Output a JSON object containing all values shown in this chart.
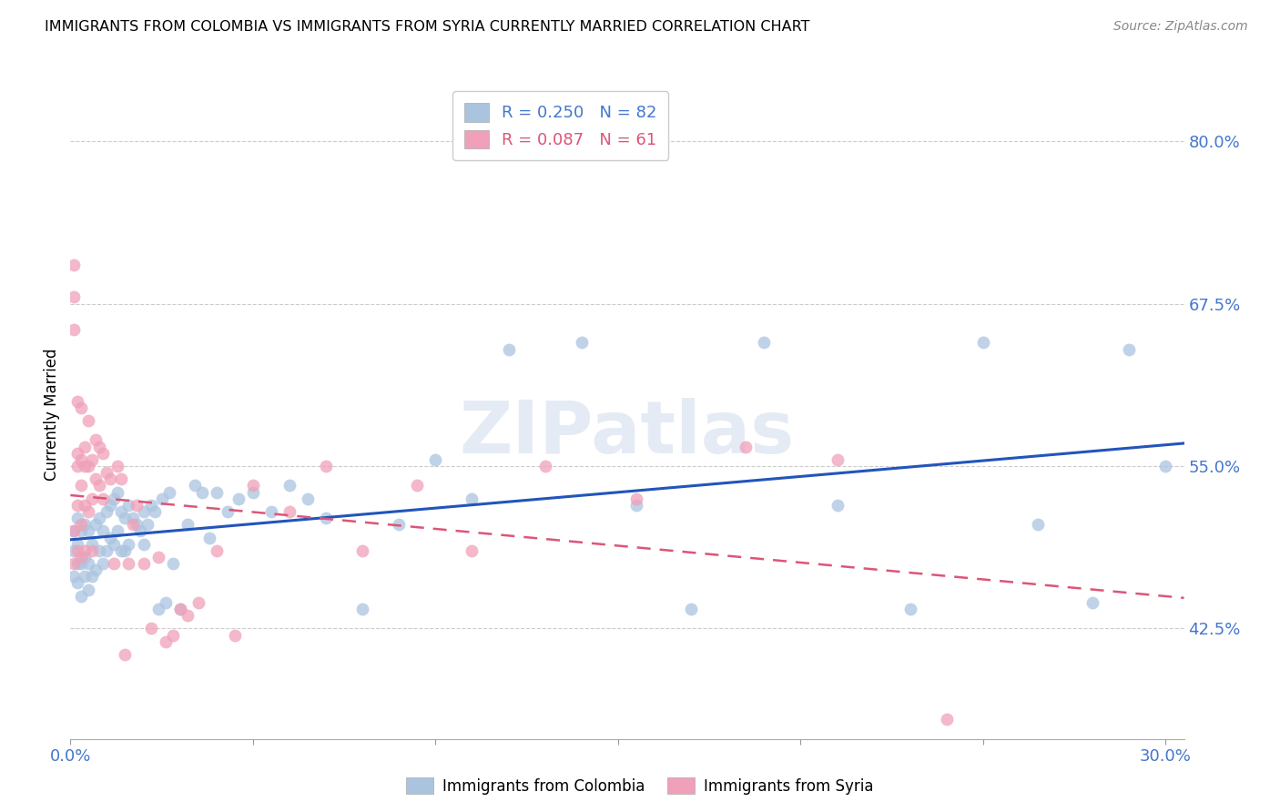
{
  "title": "IMMIGRANTS FROM COLOMBIA VS IMMIGRANTS FROM SYRIA CURRENTLY MARRIED CORRELATION CHART",
  "source": "Source: ZipAtlas.com",
  "ylabel": "Currently Married",
  "yticks": [
    42.5,
    55.0,
    67.5,
    80.0
  ],
  "ytick_labels": [
    "42.5%",
    "55.0%",
    "67.5%",
    "80.0%"
  ],
  "ymin": 34.0,
  "ymax": 84.0,
  "xmin": 0.0,
  "xmax": 0.305,
  "colombia_color": "#aac4e0",
  "syria_color": "#f0a0b8",
  "colombia_line_color": "#2255bb",
  "syria_line_color": "#dd5577",
  "legend_label_colombia": "Immigrants from Colombia",
  "legend_label_syria": "Immigrants from Syria",
  "watermark": "ZIPatlas",
  "colombia_x": [
    0.001,
    0.001,
    0.001,
    0.002,
    0.002,
    0.002,
    0.002,
    0.003,
    0.003,
    0.003,
    0.004,
    0.004,
    0.004,
    0.005,
    0.005,
    0.005,
    0.006,
    0.006,
    0.007,
    0.007,
    0.008,
    0.008,
    0.009,
    0.009,
    0.01,
    0.01,
    0.011,
    0.011,
    0.012,
    0.012,
    0.013,
    0.013,
    0.014,
    0.014,
    0.015,
    0.015,
    0.016,
    0.016,
    0.017,
    0.018,
    0.019,
    0.02,
    0.02,
    0.021,
    0.022,
    0.023,
    0.024,
    0.025,
    0.026,
    0.027,
    0.028,
    0.03,
    0.032,
    0.034,
    0.036,
    0.038,
    0.04,
    0.043,
    0.046,
    0.05,
    0.055,
    0.06,
    0.065,
    0.07,
    0.08,
    0.09,
    0.1,
    0.11,
    0.12,
    0.14,
    0.155,
    0.17,
    0.19,
    0.21,
    0.23,
    0.25,
    0.265,
    0.28,
    0.29,
    0.3
  ],
  "colombia_y": [
    46.5,
    48.5,
    50.0,
    46.0,
    47.5,
    49.0,
    51.0,
    45.0,
    47.5,
    50.0,
    46.5,
    48.0,
    50.5,
    45.5,
    47.5,
    50.0,
    46.5,
    49.0,
    47.0,
    50.5,
    48.5,
    51.0,
    47.5,
    50.0,
    48.5,
    51.5,
    49.5,
    52.0,
    49.0,
    52.5,
    50.0,
    53.0,
    51.5,
    48.5,
    51.0,
    48.5,
    52.0,
    49.0,
    51.0,
    50.5,
    50.0,
    51.5,
    49.0,
    50.5,
    52.0,
    51.5,
    44.0,
    52.5,
    44.5,
    53.0,
    47.5,
    44.0,
    50.5,
    53.5,
    53.0,
    49.5,
    53.0,
    51.5,
    52.5,
    53.0,
    51.5,
    53.5,
    52.5,
    51.0,
    44.0,
    50.5,
    55.5,
    52.5,
    64.0,
    64.5,
    52.0,
    44.0,
    64.5,
    52.0,
    44.0,
    64.5,
    50.5,
    44.5,
    64.0,
    55.0
  ],
  "syria_x": [
    0.001,
    0.001,
    0.001,
    0.001,
    0.001,
    0.002,
    0.002,
    0.002,
    0.002,
    0.002,
    0.003,
    0.003,
    0.003,
    0.003,
    0.003,
    0.004,
    0.004,
    0.004,
    0.004,
    0.005,
    0.005,
    0.005,
    0.006,
    0.006,
    0.006,
    0.007,
    0.007,
    0.008,
    0.008,
    0.009,
    0.009,
    0.01,
    0.011,
    0.012,
    0.013,
    0.014,
    0.015,
    0.016,
    0.017,
    0.018,
    0.02,
    0.022,
    0.024,
    0.026,
    0.028,
    0.03,
    0.032,
    0.035,
    0.04,
    0.045,
    0.05,
    0.06,
    0.07,
    0.08,
    0.095,
    0.11,
    0.13,
    0.155,
    0.185,
    0.21,
    0.24
  ],
  "syria_y": [
    70.5,
    68.0,
    65.5,
    50.0,
    47.5,
    56.0,
    60.0,
    55.0,
    52.0,
    48.5,
    59.5,
    55.5,
    53.5,
    50.5,
    48.0,
    56.5,
    55.0,
    52.0,
    48.5,
    58.5,
    55.0,
    51.5,
    55.5,
    52.5,
    48.5,
    57.0,
    54.0,
    56.5,
    53.5,
    56.0,
    52.5,
    54.5,
    54.0,
    47.5,
    55.0,
    54.0,
    40.5,
    47.5,
    50.5,
    52.0,
    47.5,
    42.5,
    48.0,
    41.5,
    42.0,
    44.0,
    43.5,
    44.5,
    48.5,
    42.0,
    53.5,
    51.5,
    55.0,
    48.5,
    53.5,
    48.5,
    55.0,
    52.5,
    56.5,
    55.5,
    35.5
  ]
}
